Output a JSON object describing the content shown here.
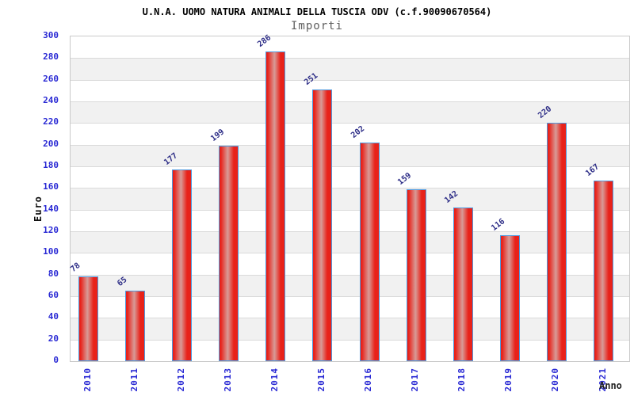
{
  "header": {
    "title": "U.N.A. UOMO NATURA ANIMALI DELLA TUSCIA ODV (c.f.90090670564)",
    "subtitle": "Importi"
  },
  "chart_data": {
    "type": "bar",
    "title": "U.N.A. UOMO NATURA ANIMALI DELLA TUSCIA ODV (c.f.90090670564)",
    "subtitle": "Importi",
    "xlabel": "Anno",
    "ylabel": "Euro",
    "categories": [
      "2010",
      "2011",
      "2012",
      "2013",
      "2014",
      "2015",
      "2016",
      "2017",
      "2018",
      "2019",
      "2020",
      "2021"
    ],
    "values": [
      78,
      65,
      177,
      199,
      286,
      251,
      202,
      159,
      142,
      116,
      220,
      167
    ],
    "ylim": [
      0,
      300
    ],
    "ytick_step": 20,
    "grid": "horizontal",
    "legend_position": "none",
    "colors": {
      "bar_fill": "#e8221a",
      "bar_highlight": "#d89b97",
      "bar_border": "#4f9be0",
      "band_alt": "#f1f1f1",
      "band_base": "#ffffff",
      "grid_line": "#dadada",
      "plot_border": "#c9c9c9",
      "tick_label": "#2929d4",
      "value_label": "#2c2c86",
      "title_color": "#000000",
      "subtitle_color": "#5f5f5f"
    }
  }
}
